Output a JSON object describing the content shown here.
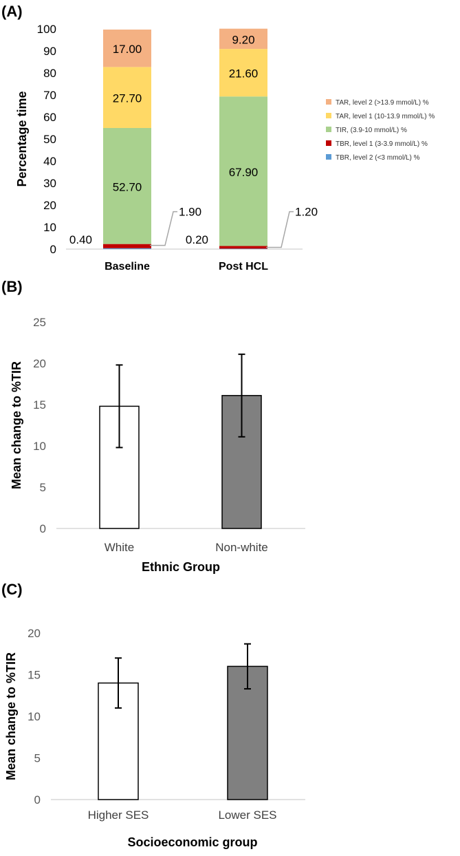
{
  "chart_data": [
    {
      "type": "bar",
      "stacked": true,
      "panel_label": "(A)",
      "title": "",
      "xlabel": "",
      "ylabel": "Percentage  time",
      "ylim": [
        0,
        100
      ],
      "yticks": [
        "0",
        "10",
        "20",
        "30",
        "40",
        "50",
        "60",
        "70",
        "80",
        "90",
        "100"
      ],
      "categories": [
        "Baseline",
        "Post HCL"
      ],
      "series": [
        {
          "name": "TBR, level 2 (<3 mmol/L) %",
          "values": [
            0.4,
            0.2
          ],
          "labels": [
            "0.40",
            "0.20"
          ],
          "color": "#5B9BD5"
        },
        {
          "name": "TBR, level 1 (3-3.9 mmol/L) %",
          "values": [
            1.9,
            1.2
          ],
          "labels": [
            "1.90",
            "1.20"
          ],
          "color": "#C00000"
        },
        {
          "name": "TIR, (3.9-10 mmol/L) %",
          "values": [
            52.7,
            67.9
          ],
          "labels": [
            "52.70",
            "67.90"
          ],
          "color": "#A9D18E"
        },
        {
          "name": "TAR, level 1 (10-13.9 mmol/L) %",
          "values": [
            27.7,
            21.6
          ],
          "labels": [
            "27.70",
            "21.60"
          ],
          "color": "#FFD966"
        },
        {
          "name": "TAR, level 2 (>13.9 mmol/L) %",
          "values": [
            17.0,
            9.2
          ],
          "labels": [
            "17.00",
            "9.20"
          ],
          "color": "#F4B183"
        }
      ],
      "legend_order": [
        "TAR, level 2 (>13.9 mmol/L) %",
        "TAR, level 1 (10-13.9 mmol/L) %",
        "TIR, (3.9-10 mmol/L) %",
        "TBR, level 1 (3-3.9 mmol/L) %",
        "TBR, level 2 (<3 mmol/L) %"
      ],
      "legend_position": "right",
      "grid": false
    },
    {
      "type": "bar",
      "panel_label": "(B)",
      "title": "",
      "xlabel": "Ethnic Group",
      "ylabel": "Mean change to %TIR",
      "ylim": [
        0,
        25
      ],
      "yticks": [
        "0",
        "5",
        "10",
        "15",
        "20",
        "25"
      ],
      "categories": [
        "White",
        "Non-white"
      ],
      "values": [
        14.8,
        16.1
      ],
      "errors": [
        5.0,
        5.0
      ],
      "colors": [
        "#FFFFFF",
        "#808080"
      ],
      "grid": false
    },
    {
      "type": "bar",
      "panel_label": "(C)",
      "title": "",
      "xlabel": "Socioeconomic group",
      "ylabel": "Mean change to %TIR",
      "ylim": [
        0,
        20
      ],
      "yticks": [
        "0",
        "5",
        "10",
        "15",
        "20"
      ],
      "categories": [
        "Higher SES",
        "Lower SES"
      ],
      "values": [
        14.0,
        16.0
      ],
      "errors": [
        3.0,
        2.7
      ],
      "colors": [
        "#FFFFFF",
        "#808080"
      ],
      "grid": false
    }
  ]
}
